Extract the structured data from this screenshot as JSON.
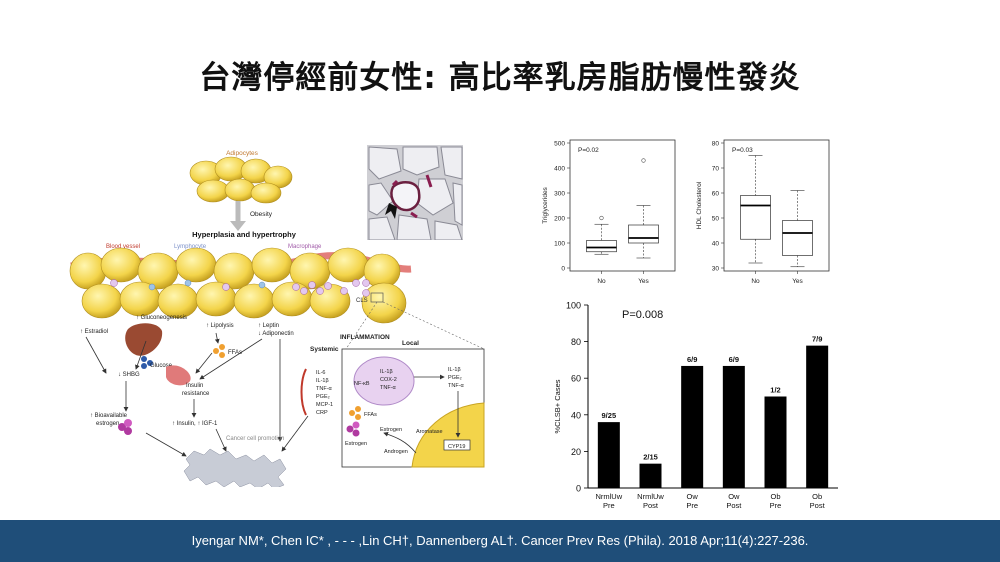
{
  "slide": {
    "title": "台灣停經前女性: 高比率乳房脂肪慢性發炎",
    "citation": "Iyengar NM*, Chen IC* , - - - ,Lin CH†, Dannenberg AL†. Cancer Prev Res (Phila). 2018 Apr;11(4):227-236."
  },
  "diagram": {
    "adipocytes": "Adipocytes",
    "obesity": "Obesity",
    "hyperplasia": "Hyperplasia and hypertrophy",
    "blood_vessel": "Blood vessel",
    "lymphocyte": "Lymphocyte",
    "macrophage": "Macrophage",
    "cls": "CLS",
    "inflammation": "INFLAMMATION",
    "local": "Local",
    "systemic": "Systemic",
    "estradiol": "↑ Estradiol",
    "gluconeogenesis": "↑ Gluconeogenesis",
    "lipolysis": "↑ Lipolysis",
    "leptin": "↑ Leptin",
    "adiponectin": "↓ Adiponectin",
    "ffas": "FFAs",
    "glucose": "Glucose",
    "shbg": "↓ SHBG",
    "insulin_resistance_1": "Insulin",
    "insulin_resistance_2": "resistance",
    "insulin_igf": "↑ Insulin, ↑ IGF-1",
    "bioavailable_1": "↑ Bioavailable",
    "bioavailable_2": "estrogen",
    "cancer_promotion": "Cancer cell promotion",
    "systemic_markers": [
      "IL-6",
      "IL-1β",
      "TNF-α",
      "PGE₂",
      "MCP-1",
      "CRP"
    ],
    "nfkb": "NF-κB",
    "cell_markers": [
      "IL-1β",
      "COX-2",
      "TNF-α"
    ],
    "local_markers": [
      "IL-1β",
      "PGE₂",
      "TNF-α"
    ],
    "ffas_local": "FFAs",
    "estrogen_local": "Estrogen",
    "estrogen_inner": "Estrogen",
    "aromatase": "Aromatase",
    "androgen": "Androgen",
    "cyp19": "CYP19"
  },
  "chart_data": [
    {
      "type": "box",
      "ylabel": "Triglycerides",
      "annotation": "P=0.02",
      "categories": [
        "No",
        "Yes"
      ],
      "ylim": [
        0,
        500
      ],
      "yticks": [
        0,
        100,
        200,
        300,
        400,
        500
      ],
      "boxes": [
        {
          "min": 55,
          "q1": 65,
          "median": 82,
          "q3": 110,
          "max": 175,
          "outliers": [
            200
          ]
        },
        {
          "min": 40,
          "q1": 100,
          "median": 120,
          "q3": 172,
          "max": 250,
          "outliers": [
            430
          ]
        }
      ]
    },
    {
      "type": "box",
      "ylabel": "HDL Cholesterol",
      "annotation": "P=0.03",
      "categories": [
        "No",
        "Yes"
      ],
      "ylim": [
        30,
        80
      ],
      "yticks": [
        30,
        40,
        50,
        60,
        70,
        80
      ],
      "boxes": [
        {
          "min": 32,
          "q1": 41.5,
          "median": 55,
          "q3": 59,
          "max": 75,
          "outliers": []
        },
        {
          "min": 30.5,
          "q1": 35,
          "median": 44,
          "q3": 49,
          "max": 61,
          "outliers": []
        }
      ]
    },
    {
      "type": "bar",
      "ylabel": "%CLSB+ Cases",
      "annotation": "P=0.008",
      "ylim": [
        0,
        100
      ],
      "yticks": [
        0,
        20,
        40,
        60,
        80,
        100
      ],
      "categories": [
        [
          "NrmlUw",
          "Pre"
        ],
        [
          "NrmlUw",
          "Post"
        ],
        [
          "Ow",
          "Pre"
        ],
        [
          "Ow",
          "Post"
        ],
        [
          "Ob",
          "Pre"
        ],
        [
          "Ob",
          "Post"
        ]
      ],
      "values": [
        36,
        13.3,
        66.7,
        66.7,
        50,
        77.8
      ],
      "labels": [
        "9/25",
        "2/15",
        "6/9",
        "6/9",
        "1/2",
        "7/9"
      ]
    }
  ]
}
